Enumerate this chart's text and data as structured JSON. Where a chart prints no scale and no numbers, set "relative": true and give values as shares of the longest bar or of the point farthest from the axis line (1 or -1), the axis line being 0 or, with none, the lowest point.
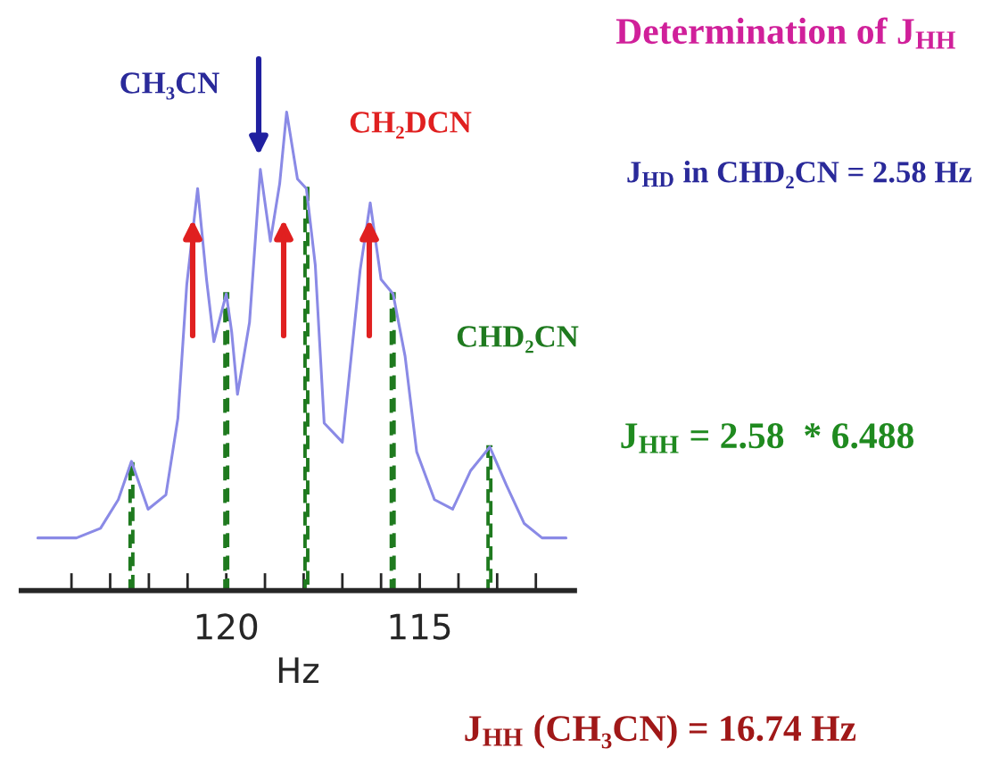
{
  "chart_data": {
    "type": "line",
    "title": "Determination of J$_{HH}$",
    "xlabel": "Hz",
    "relative": true,
    "xlim": [
      125.3,
      111.0
    ],
    "xticks": [
      {
        "value": 124,
        "label": null
      },
      {
        "value": 123,
        "label": null
      },
      {
        "value": 122,
        "label": null
      },
      {
        "value": 121,
        "label": null
      },
      120,
      {
        "value": 119,
        "label": null
      },
      {
        "value": 118,
        "label": null
      },
      {
        "value": 117,
        "label": null
      },
      {
        "value": 116,
        "label": null
      },
      115,
      {
        "value": 114,
        "label": null
      },
      {
        "value": 113,
        "label": null
      },
      {
        "value": 112,
        "label": null
      }
    ],
    "tick_labels": "x",
    "grid": false,
    "legend": false,
    "series": [
      {
        "color": "#8a8ae6",
        "x": [
          124.87,
          123.87,
          123.25,
          122.79,
          122.45,
          122.02,
          121.56,
          121.25,
          121.02,
          120.74,
          120.51,
          120.32,
          120.0,
          119.86,
          119.71,
          119.4,
          119.12,
          118.86,
          118.62,
          118.44,
          118.16,
          117.93,
          117.7,
          117.47,
          117.0,
          116.77,
          116.54,
          116.28,
          116.0,
          115.69,
          115.38,
          115.08,
          114.62,
          114.15,
          113.69,
          113.19,
          112.76,
          112.3,
          111.84,
          111.22
        ],
        "values": [
          0.11,
          0.11,
          0.13,
          0.19,
          0.27,
          0.17,
          0.2,
          0.36,
          0.64,
          0.84,
          0.65,
          0.52,
          0.62,
          0.54,
          0.41,
          0.56,
          0.88,
          0.73,
          0.85,
          1.0,
          0.86,
          0.84,
          0.68,
          0.35,
          0.31,
          0.49,
          0.67,
          0.81,
          0.65,
          0.62,
          0.49,
          0.29,
          0.19,
          0.17,
          0.25,
          0.3,
          0.22,
          0.14,
          0.11,
          0.11
        ]
      },
      {
        "type": "bar",
        "color": "#1f7a1f",
        "line_style": "dashed",
        "x": [
          122.45,
          120.0,
          117.93,
          115.7,
          113.2
        ],
        "values": [
          0.27,
          0.62,
          0.84,
          0.62,
          0.3
        ]
      }
    ],
    "annotations": [
      "CH₃CN",
      "CH₂DCN",
      "CHD₂CN",
      "J$_{HD}$ in CHD₂CN = 2.58 Hz",
      "J$_{HH}$ = 2.58  * 6.488",
      "J$_{HH}$ (CH₃CN) = 16.74 Hz"
    ]
  }
}
